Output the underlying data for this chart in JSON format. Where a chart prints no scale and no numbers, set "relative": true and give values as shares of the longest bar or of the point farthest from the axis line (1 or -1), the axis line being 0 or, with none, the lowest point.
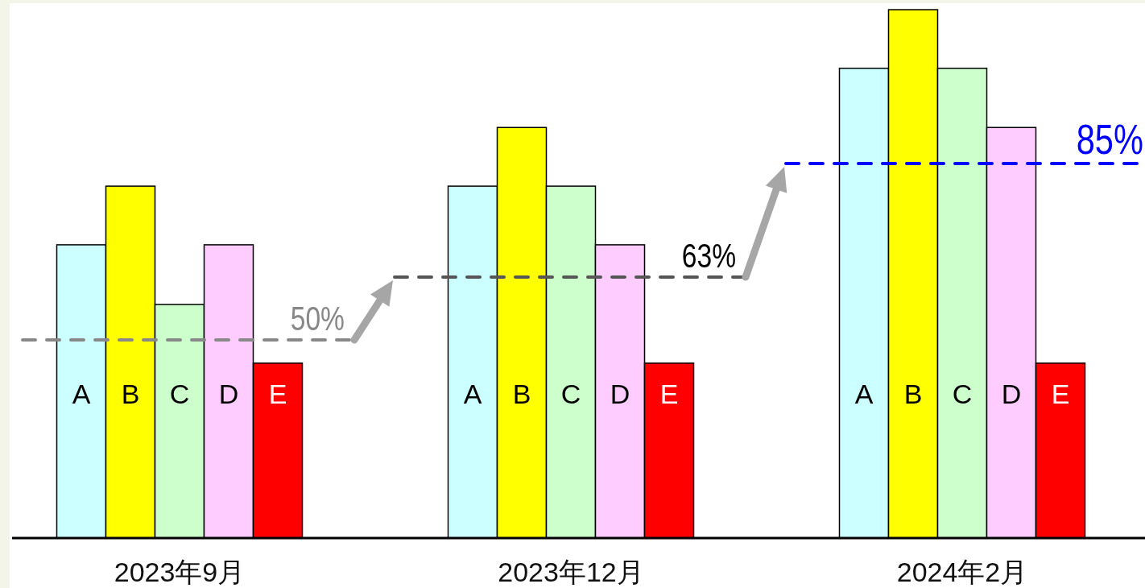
{
  "chart_data": {
    "type": "bar",
    "relative": true,
    "categories": [
      "2023年9月",
      "2023年12月",
      "2024年2月"
    ],
    "series": [
      {
        "name": "A",
        "color": "#ccffff",
        "values": [
          0.555,
          0.666,
          0.889
        ]
      },
      {
        "name": "B",
        "color": "#ffff00",
        "values": [
          0.666,
          0.777,
          1
        ]
      },
      {
        "name": "C",
        "color": "#ccffcc",
        "values": [
          0.442,
          0.666,
          0.889
        ]
      },
      {
        "name": "D",
        "color": "#ffccff",
        "values": [
          0.555,
          0.555,
          0.777
        ]
      },
      {
        "name": "E",
        "color": "#ff0000",
        "values": [
          0.331,
          0.331,
          0.331
        ]
      }
    ],
    "ref_lines": [
      {
        "axis": "y",
        "value": 0.375,
        "color": "#888888",
        "line_style": "dashed"
      },
      {
        "axis": "y",
        "value": 0.494,
        "color": "#555555",
        "line_style": "dashed"
      },
      {
        "axis": "y",
        "value": 0.709,
        "color": "#0000ff",
        "line_style": "dashed"
      }
    ],
    "annotations": [
      "50%",
      "63%",
      "85%"
    ]
  }
}
